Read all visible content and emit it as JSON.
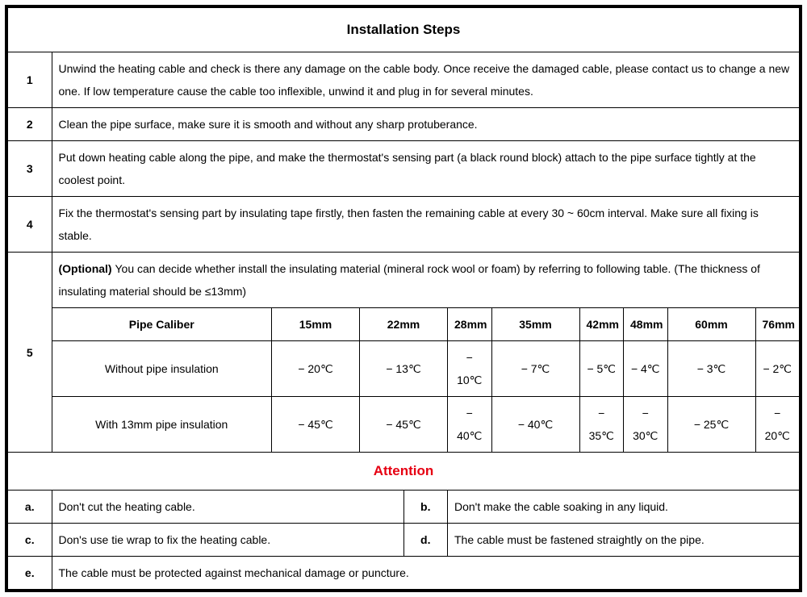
{
  "header": "Installation Steps",
  "steps": [
    {
      "n": "1",
      "t": "Unwind the heating cable and check is there any damage on the cable body. Once receive the damaged cable, please contact us to change a new one. If low temperature cause the cable too inflexible, unwind it and plug in for several minutes."
    },
    {
      "n": "2",
      "t": "Clean the pipe surface, make sure it is smooth and without any sharp protuberance."
    },
    {
      "n": "3",
      "t": "Put down heating cable along the pipe, and make the thermostat's sensing part (a black round block) attach to the pipe surface tightly at the coolest point."
    },
    {
      "n": "4",
      "t": "Fix the thermostat's sensing part by insulating tape firstly, then fasten the remaining cable at every 30 ~ 60cm interval. Make sure all fixing is stable."
    },
    {
      "n": "5",
      "opt": "(Optional) ",
      "t": "You can decide whether install the insulating material (mineral rock wool or foam) by referring to following table. (The thickness of insulating material should be ≤13mm)"
    }
  ],
  "caliber": {
    "head": [
      "Pipe Caliber",
      "15mm",
      "22mm",
      "28mm",
      "35mm",
      "42mm",
      "48mm",
      "60mm",
      "76mm"
    ],
    "rows": [
      {
        "label": "Without pipe insulation",
        "vals": [
          "− 20℃",
          "− 13℃",
          "− 10℃",
          "− 7℃",
          "− 5℃",
          "− 4℃",
          "− 3℃",
          "− 2℃"
        ]
      },
      {
        "label": "With 13mm pipe insulation",
        "vals": [
          "− 45℃",
          "− 45℃",
          "− 40℃",
          "− 40℃",
          "− 35℃",
          "− 30℃",
          "− 25℃",
          "− 20℃"
        ]
      }
    ]
  },
  "attention_title": "Attention",
  "attention": [
    {
      "l": "a.",
      "t": "Don't cut the heating cable."
    },
    {
      "l": "b.",
      "t": "Don't make the cable soaking in any liquid."
    },
    {
      "l": "c.",
      "t": "Don's use tie wrap to fix the heating cable."
    },
    {
      "l": "d.",
      "t": "The cable must be fastened straightly on the pipe."
    },
    {
      "l": "e.",
      "t": "The cable must be protected against mechanical damage or puncture."
    }
  ],
  "colors": {
    "border": "#000000",
    "attention": "#e60012",
    "bg": "#ffffff"
  },
  "fontsize": {
    "title": 17,
    "body": 14
  }
}
